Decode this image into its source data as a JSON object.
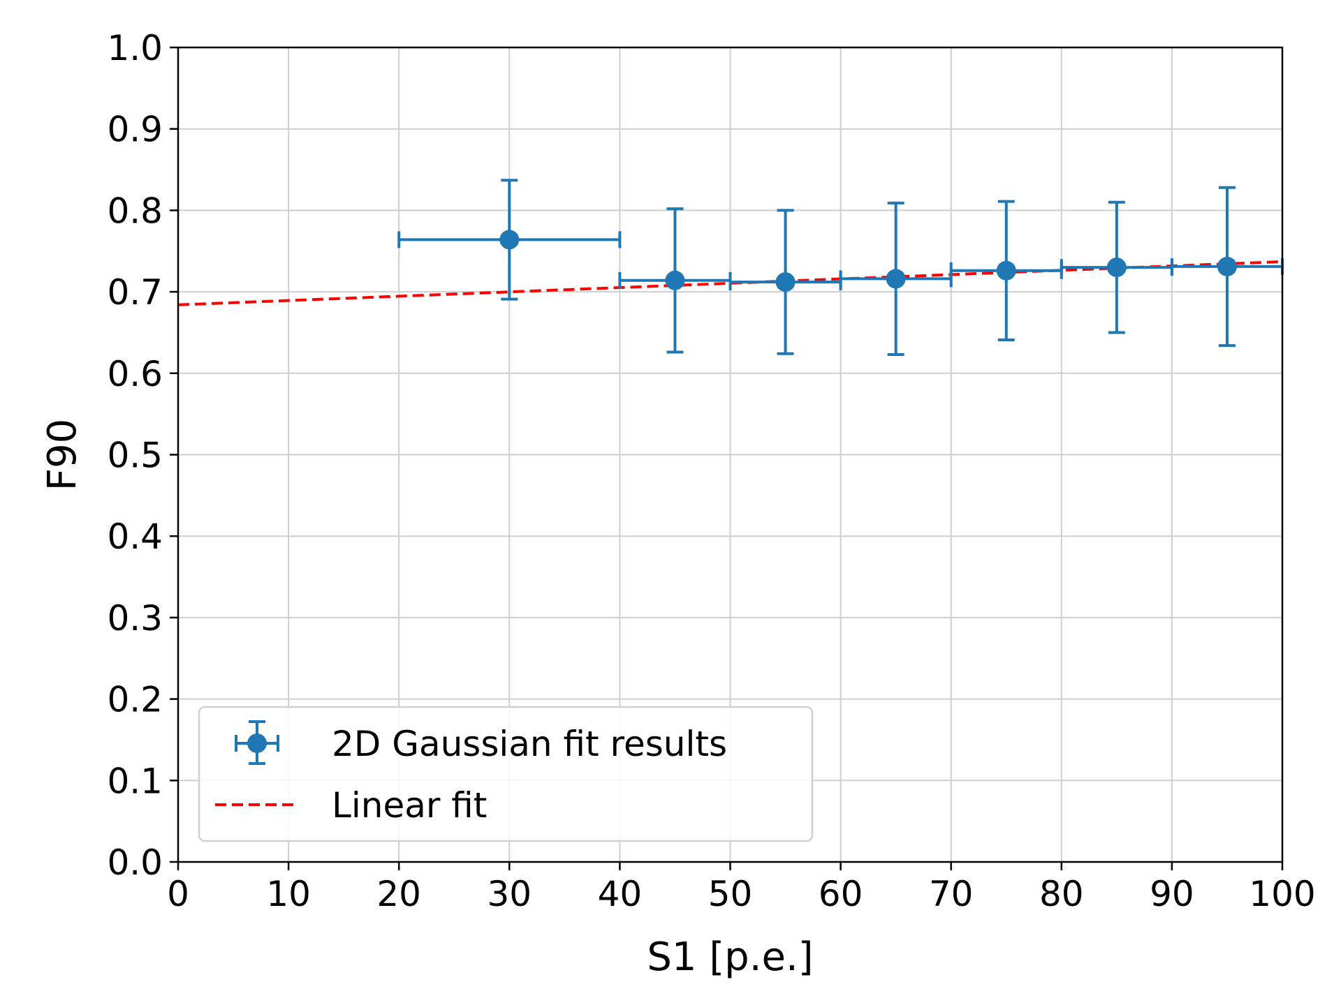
{
  "chart_data": {
    "type": "scatter",
    "xlabel": "S1 [p.e.]",
    "ylabel": "F90",
    "xlim": [
      0,
      100
    ],
    "ylim": [
      0,
      1.0
    ],
    "xticks": [
      "0",
      "10",
      "20",
      "30",
      "40",
      "50",
      "60",
      "70",
      "80",
      "90",
      "100"
    ],
    "yticks": [
      "0.0",
      "0.1",
      "0.2",
      "0.3",
      "0.4",
      "0.5",
      "0.6",
      "0.7",
      "0.8",
      "0.9",
      "1.0"
    ],
    "grid": true,
    "legend_position": "lower-left",
    "series": [
      {
        "name": "2D Gaussian fit results",
        "kind": "errorbar",
        "color": "#1f77b4",
        "x": [
          30,
          45,
          55,
          65,
          75,
          85,
          95
        ],
        "y": [
          0.764,
          0.714,
          0.712,
          0.716,
          0.726,
          0.73,
          0.731
        ],
        "xerr": [
          10,
          5,
          5,
          5,
          5,
          5,
          5
        ],
        "yerr": [
          0.073,
          0.088,
          0.088,
          0.093,
          0.085,
          0.08,
          0.097
        ]
      },
      {
        "name": "Linear fit",
        "kind": "line",
        "style": "dashed",
        "color": "#ff0000",
        "x": [
          0,
          100
        ],
        "y": [
          0.684,
          0.737
        ]
      }
    ]
  }
}
